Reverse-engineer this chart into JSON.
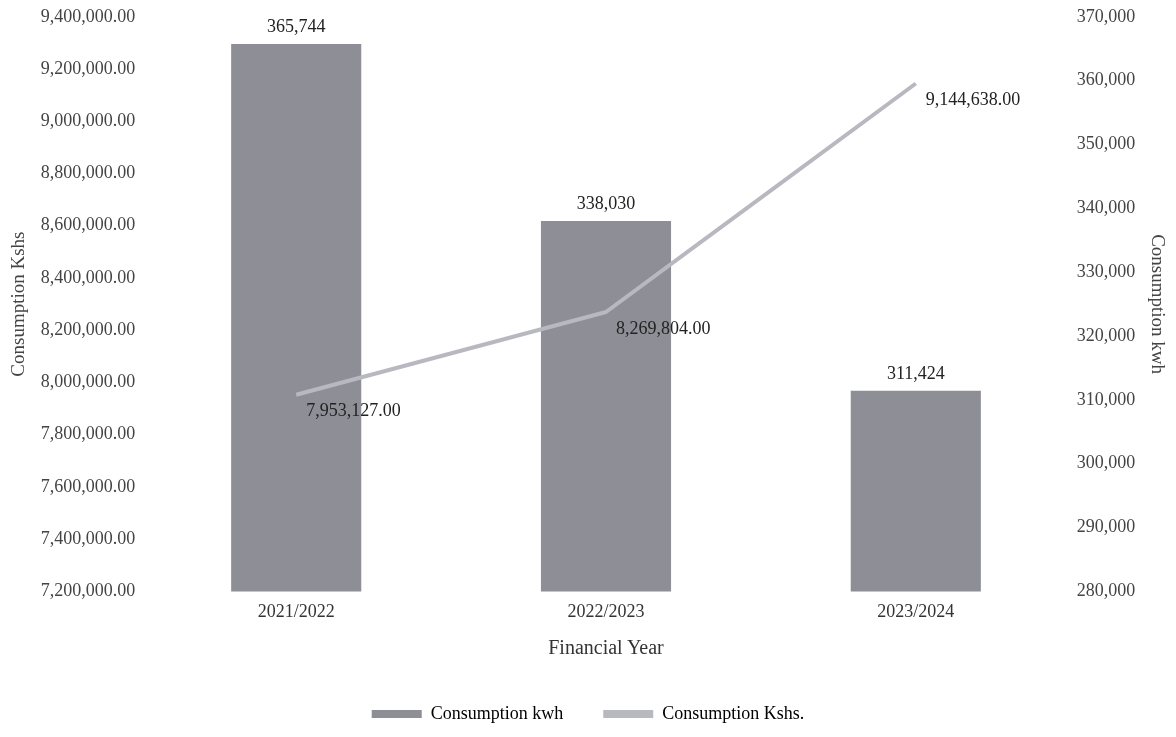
{
  "chart_data": {
    "type": "bar",
    "xlabel": "Financial Year",
    "ylabel": "Consumption Kshs",
    "y2label": "Consumption kwh",
    "categories": [
      "2021/2022",
      "2022/2023",
      "2023/2024"
    ],
    "series": [
      {
        "name": "Consumption kwh",
        "axis": "y2",
        "color": "#8e8e96",
        "values": [
          365744,
          338030,
          311424
        ],
        "value_labels": [
          "365,744",
          "338,030",
          "311,424"
        ]
      },
      {
        "name": "Consumption Kshs.",
        "type": "line",
        "axis": "y",
        "color": "#b8b8c0",
        "values": [
          7953127,
          8269804,
          9144638
        ],
        "value_labels": [
          "7,953,127.00",
          "8,269,804.00",
          "9,144,638.00"
        ]
      }
    ],
    "ylim": [
      7200000,
      9400000
    ],
    "yticks": [
      {
        "value": 7200000,
        "label": "7,200,000.00"
      },
      {
        "value": 7400000,
        "label": "7,400,000.00"
      },
      {
        "value": 7600000,
        "label": "7,600,000.00"
      },
      {
        "value": 7800000,
        "label": "7,800,000.00"
      },
      {
        "value": 8000000,
        "label": "8,000,000.00"
      },
      {
        "value": 8200000,
        "label": "8,200,000.00"
      },
      {
        "value": 8400000,
        "label": "8,400,000.00"
      },
      {
        "value": 8600000,
        "label": "8,600,000.00"
      },
      {
        "value": 8800000,
        "label": "8,800,000.00"
      },
      {
        "value": 9000000,
        "label": "9,000,000.00"
      },
      {
        "value": 9200000,
        "label": "9,200,000.00"
      },
      {
        "value": 9400000,
        "label": "9,400,000.00"
      }
    ],
    "y2lim": [
      280000,
      370000
    ],
    "y2ticks": [
      {
        "value": 280000,
        "label": "280,000"
      },
      {
        "value": 290000,
        "label": "290,000"
      },
      {
        "value": 300000,
        "label": "300,000"
      },
      {
        "value": 310000,
        "label": "310,000"
      },
      {
        "value": 320000,
        "label": "320,000"
      },
      {
        "value": 330000,
        "label": "330,000"
      },
      {
        "value": 340000,
        "label": "340,000"
      },
      {
        "value": 350000,
        "label": "350,000"
      },
      {
        "value": 360000,
        "label": "360,000"
      },
      {
        "value": 370000,
        "label": "370,000"
      }
    ],
    "grid": false,
    "legend": "bottom",
    "marker": "none",
    "line_style": "solid"
  }
}
